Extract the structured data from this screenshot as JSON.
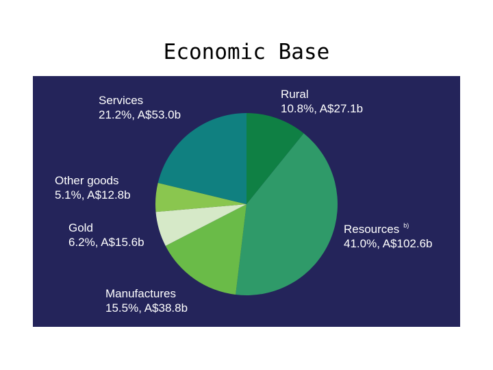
{
  "slide": {
    "title": "Economic Base"
  },
  "chart_data": {
    "type": "pie",
    "start_angle_deg": 0,
    "direction": "clockwise",
    "slices": [
      {
        "name": "Rural",
        "percent": 10.8,
        "value_label": "10.8%, A$27.1b",
        "value": 27.1,
        "color": "#0f8044",
        "footnote": ""
      },
      {
        "name": "Resources",
        "percent": 41.0,
        "value_label": "41.0%, A$102.6b",
        "value": 102.6,
        "color": "#2f9a69",
        "footnote": "b)"
      },
      {
        "name": "Manufactures",
        "percent": 15.5,
        "value_label": "15.5%, A$38.8b",
        "value": 38.8,
        "color": "#6abb48",
        "footnote": ""
      },
      {
        "name": "Gold",
        "percent": 6.2,
        "value_label": "6.2%, A$15.6b",
        "value": 15.6,
        "color": "#d6e9c8",
        "footnote": ""
      },
      {
        "name": "Other goods",
        "percent": 5.1,
        "value_label": "5.1%, A$12.8b",
        "value": 12.8,
        "color": "#8ac64f",
        "footnote": ""
      },
      {
        "name": "Services",
        "percent": 21.2,
        "value_label": "21.2%, A$53.0b",
        "value": 53.0,
        "color": "#108080",
        "footnote": ""
      }
    ]
  }
}
